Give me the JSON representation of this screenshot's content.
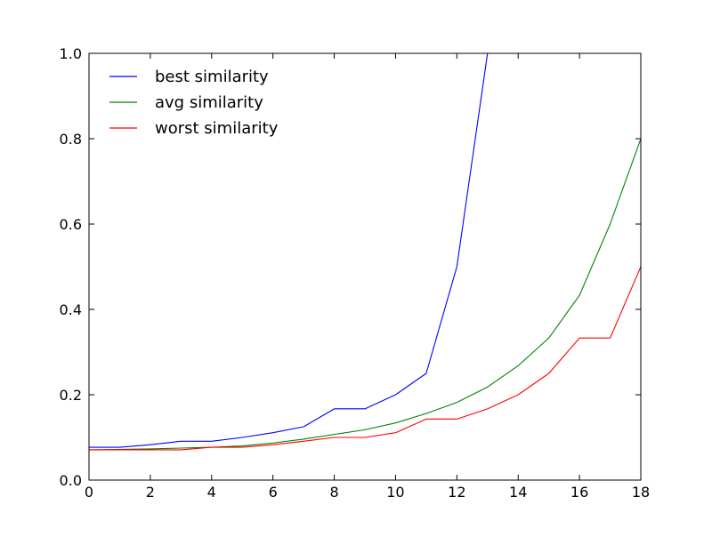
{
  "chart_data": {
    "type": "line",
    "title": "",
    "xlabel": "",
    "ylabel": "",
    "xlim": [
      0,
      18
    ],
    "ylim": [
      0,
      1.0
    ],
    "xticks": [
      0,
      2,
      4,
      6,
      8,
      10,
      12,
      14,
      16,
      18
    ],
    "xtick_labels": [
      "0",
      "2",
      "4",
      "6",
      "8",
      "10",
      "12",
      "14",
      "16",
      "18"
    ],
    "yticks": [
      0,
      0.2,
      0.4,
      0.6,
      0.8,
      1.0
    ],
    "ytick_labels": [
      "0.0",
      "0.2",
      "0.4",
      "0.6",
      "0.8",
      "1.0"
    ],
    "grid": false,
    "legend_position": "top-left",
    "x": [
      0,
      1,
      2,
      3,
      4,
      5,
      6,
      7,
      8,
      9,
      10,
      11,
      12,
      13,
      14,
      15,
      16,
      17,
      18
    ],
    "series": [
      {
        "name": "best similarity",
        "color": "#0000ff",
        "values": [
          0.077,
          0.077,
          0.083,
          0.091,
          0.091,
          0.1,
          0.111,
          0.125,
          0.167,
          0.167,
          0.2,
          0.25,
          0.5,
          1.0,
          null,
          null,
          null,
          null,
          null
        ]
      },
      {
        "name": "avg similarity",
        "color": "#008000",
        "values": [
          0.071,
          0.072,
          0.073,
          0.075,
          0.077,
          0.08,
          0.087,
          0.096,
          0.107,
          0.118,
          0.134,
          0.156,
          0.182,
          0.218,
          0.268,
          0.333,
          0.433,
          0.6,
          0.8
        ]
      },
      {
        "name": "worst similarity",
        "color": "#ff0000",
        "values": [
          0.071,
          0.071,
          0.071,
          0.071,
          0.077,
          0.077,
          0.083,
          0.091,
          0.1,
          0.1,
          0.111,
          0.143,
          0.143,
          0.167,
          0.2,
          0.25,
          0.333,
          0.333,
          0.5
        ]
      }
    ]
  }
}
